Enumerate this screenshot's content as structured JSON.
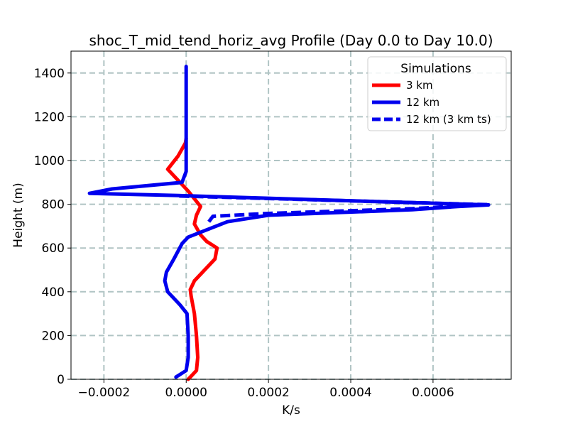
{
  "chart_data": {
    "type": "line",
    "title": "shoc_T_mid_tend_horiz_avg Profile (Day 0.0 to Day 10.0)",
    "xlabel": "K/s",
    "ylabel": "Height (m)",
    "xlim": [
      -0.00028,
      0.00079
    ],
    "ylim": [
      0,
      1500
    ],
    "xticks": [
      -0.0002,
      0.0,
      0.0002,
      0.0004,
      0.0006
    ],
    "xtick_labels": [
      "−0.0002",
      "0.0000",
      "0.0002",
      "0.0004",
      "0.0006"
    ],
    "yticks": [
      0,
      200,
      400,
      600,
      800,
      1000,
      1200,
      1400
    ],
    "ytick_labels": [
      "0",
      "200",
      "400",
      "600",
      "800",
      "1000",
      "1200",
      "1400"
    ],
    "grid": true,
    "legend": {
      "title": "Simulations",
      "location": "upper right"
    },
    "series": [
      {
        "name": "3 km",
        "color": "#ff0000",
        "dash": "solid",
        "points": [
          [
            5e-06,
            0
          ],
          [
            2.5e-05,
            40
          ],
          [
            2.8e-05,
            100
          ],
          [
            2.5e-05,
            200
          ],
          [
            2e-05,
            300
          ],
          [
            1.2e-05,
            380
          ],
          [
            1e-05,
            410
          ],
          [
            2e-05,
            450
          ],
          [
            4.5e-05,
            500
          ],
          [
            7e-05,
            550
          ],
          [
            7.5e-05,
            600
          ],
          [
            5e-05,
            630
          ],
          [
            3.5e-05,
            660
          ],
          [
            2e-05,
            710
          ],
          [
            2.5e-05,
            750
          ],
          [
            3.5e-05,
            790
          ],
          [
            5e-06,
            860
          ],
          [
            -1.5e-05,
            900
          ],
          [
            -4.5e-05,
            960
          ],
          [
            -2e-05,
            1020
          ],
          [
            -2e-06,
            1080
          ],
          [
            0.0,
            1100
          ]
        ]
      },
      {
        "name": "12 km",
        "color": "#0000ee",
        "dash": "solid",
        "points": [
          [
            -2.5e-05,
            10
          ],
          [
            0.0,
            40
          ],
          [
            5e-06,
            100
          ],
          [
            5e-06,
            200
          ],
          [
            2e-06,
            300
          ],
          [
            -1.5e-05,
            340
          ],
          [
            -4.5e-05,
            400
          ],
          [
            -5.2e-05,
            450
          ],
          [
            -4.8e-05,
            490
          ],
          [
            -3e-05,
            550
          ],
          [
            -1e-05,
            620
          ],
          [
            5e-06,
            650
          ],
          [
            0.0001,
            720
          ],
          [
            0.0002,
            750
          ],
          [
            0.00055,
            775
          ],
          [
            0.00066,
            790
          ],
          [
            0.000735,
            797
          ],
          [
            -2e-05,
            840
          ],
          [
            -0.000235,
            850
          ],
          [
            -0.00018,
            870
          ],
          [
            -1e-05,
            900
          ],
          [
            0.0,
            950
          ],
          [
            0.0,
            1100
          ],
          [
            0.0,
            1300
          ],
          [
            0.0,
            1430
          ]
        ]
      },
      {
        "name": "12 km (3 km ts)",
        "color": "#0000ee",
        "dash": "dashed",
        "points": [
          [
            5.5e-05,
            720
          ],
          [
            6.5e-05,
            745
          ],
          [
            0.0002,
            758
          ],
          [
            0.00055,
            780
          ],
          [
            0.00066,
            792
          ],
          [
            0.000735,
            798
          ],
          [
            -2e-05,
            838
          ]
        ]
      }
    ]
  }
}
